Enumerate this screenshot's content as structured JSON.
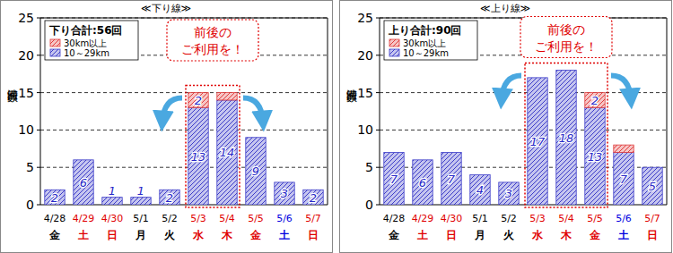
{
  "chart_data": [
    {
      "type": "bar",
      "title": "≪下り線≫",
      "y_label": "渋滞回数",
      "legend_title": "下り合計:56回",
      "categories": [
        "4/28",
        "4/29",
        "4/30",
        "5/1",
        "5/2",
        "5/3",
        "5/4",
        "5/5",
        "5/6",
        "5/7"
      ],
      "weekdays": [
        "金",
        "土",
        "日",
        "月",
        "火",
        "水",
        "木",
        "金",
        "土",
        "日"
      ],
      "x_label_colors": [
        "#000000",
        "#e00000",
        "#e00000",
        "#000000",
        "#000000",
        "#e00000",
        "#e00000",
        "#e00000",
        "#0000e0",
        "#e00000"
      ],
      "series": [
        {
          "name": "10～29km",
          "color": "#3c3cc8",
          "values": [
            2,
            6,
            1,
            1,
            2,
            13,
            14,
            9,
            3,
            2
          ],
          "value_labels": [
            "2",
            "6",
            "1",
            "1",
            "2",
            "13",
            "14",
            "9",
            "3",
            "2"
          ]
        },
        {
          "name": "30km以上",
          "color": "#e03c3c",
          "values": [
            0,
            0,
            0,
            0,
            0,
            2,
            1,
            0,
            0,
            0
          ],
          "value_labels": [
            null,
            null,
            null,
            null,
            null,
            "2",
            null,
            null,
            null,
            null
          ]
        }
      ],
      "stacked": true,
      "data_labels": true,
      "grid": true,
      "legend": "top-left",
      "ylim": [
        0,
        25
      ],
      "yticks": [
        0,
        5,
        10,
        15,
        20,
        25
      ],
      "annotation": {
        "text": [
          "前後の",
          "ご利用を！"
        ],
        "categories": [
          "5/3",
          "5/4"
        ]
      }
    },
    {
      "type": "bar",
      "title": "≪上り線≫",
      "y_label": "渋滞回数",
      "legend_title": "上り合計:90回",
      "categories": [
        "4/28",
        "4/29",
        "4/30",
        "5/1",
        "5/2",
        "5/3",
        "5/4",
        "5/5",
        "5/6",
        "5/7"
      ],
      "weekdays": [
        "金",
        "土",
        "日",
        "月",
        "火",
        "水",
        "木",
        "金",
        "土",
        "日"
      ],
      "x_label_colors": [
        "#000000",
        "#e00000",
        "#e00000",
        "#000000",
        "#000000",
        "#e00000",
        "#e00000",
        "#e00000",
        "#0000e0",
        "#e00000"
      ],
      "series": [
        {
          "name": "10～29km",
          "color": "#3c3cc8",
          "values": [
            7,
            6,
            7,
            4,
            3,
            17,
            18,
            13,
            7,
            5
          ],
          "value_labels": [
            "7",
            "6",
            "7",
            "4",
            "3",
            "17",
            "18",
            "13",
            "7",
            "5"
          ]
        },
        {
          "name": "30km以上",
          "color": "#e03c3c",
          "values": [
            0,
            0,
            0,
            0,
            0,
            0,
            0,
            2,
            1,
            0
          ],
          "value_labels": [
            null,
            null,
            null,
            null,
            null,
            null,
            null,
            "2",
            null,
            null
          ]
        }
      ],
      "stacked": true,
      "data_labels": true,
      "grid": true,
      "legend": "top-left",
      "ylim": [
        0,
        25
      ],
      "yticks": [
        0,
        5,
        10,
        15,
        20,
        25
      ],
      "annotation": {
        "text": [
          "前後の",
          "ご利用を！"
        ],
        "categories": [
          "5/3",
          "5/5"
        ]
      }
    }
  ]
}
